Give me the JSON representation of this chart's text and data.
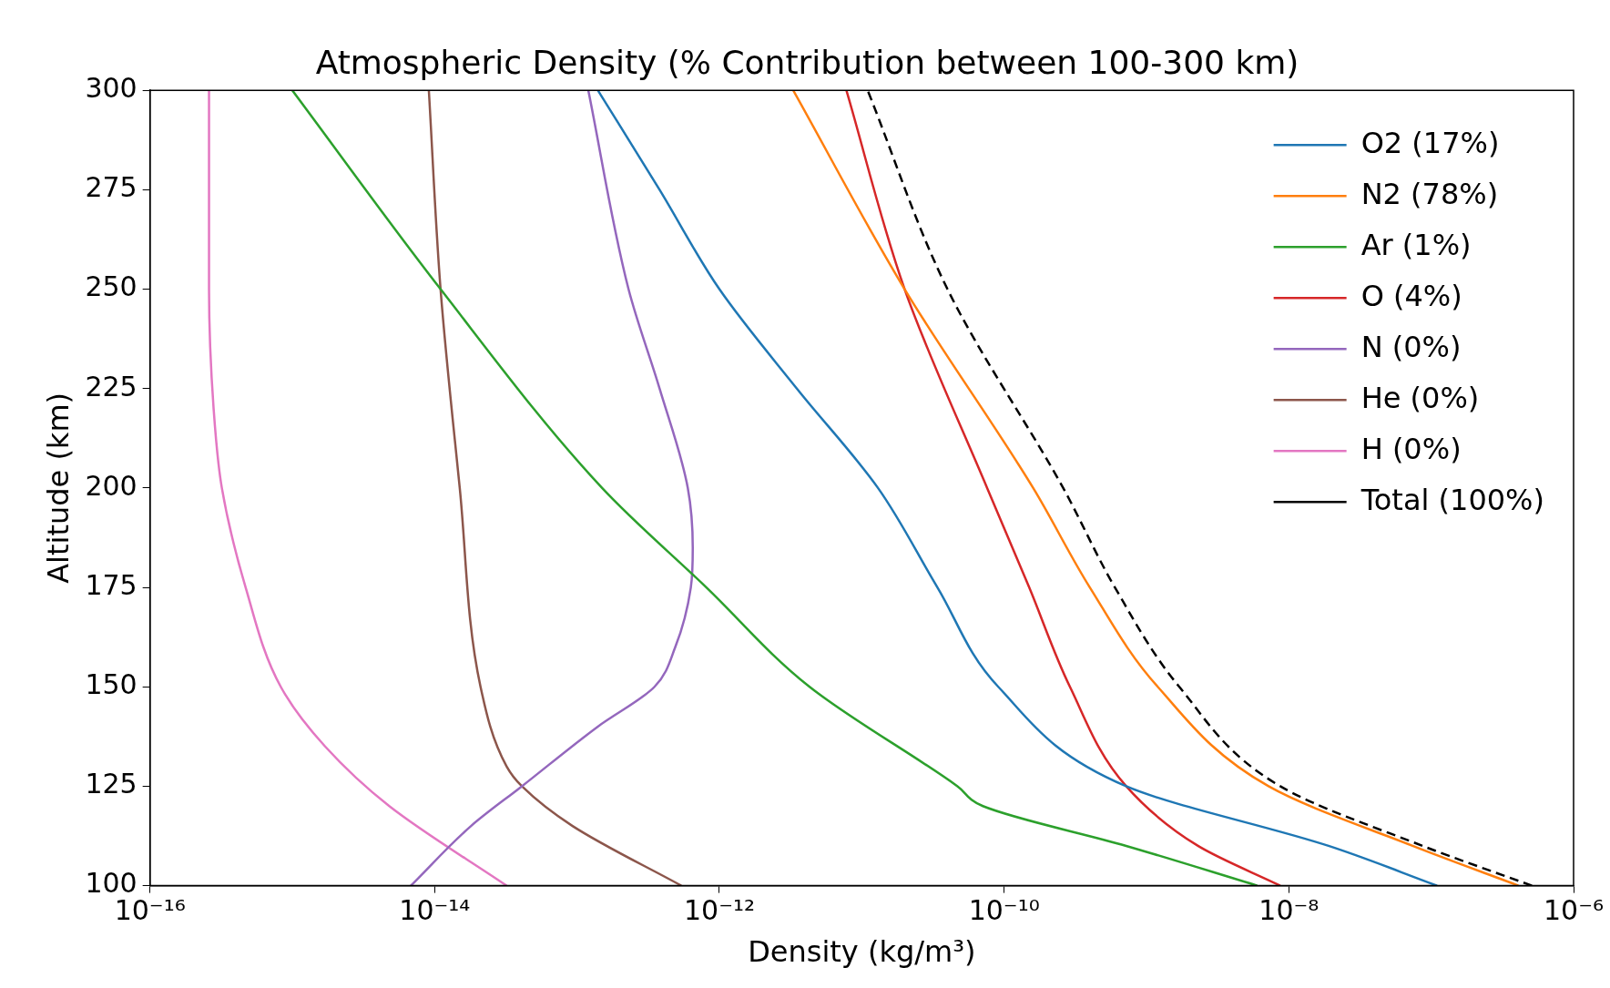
{
  "chart_data": {
    "type": "line",
    "title": "Atmospheric Density (% Contribution between 100-300 km)",
    "xlabel": "Density (kg/m³)",
    "ylabel": "Altitude (km)",
    "log": "x",
    "grid": false,
    "legend": "top right",
    "marker": "none",
    "xlim": [
      1e-16,
      1e-06
    ],
    "xticks": [
      {
        "value": 1e-16,
        "label": "10⁻¹⁶"
      },
      {
        "value": 1e-14,
        "label": "10⁻¹⁴"
      },
      {
        "value": 1e-12,
        "label": "10⁻¹²"
      },
      {
        "value": 1e-10,
        "label": "10⁻¹⁰"
      },
      {
        "value": 1e-08,
        "label": "10⁻⁸"
      },
      {
        "value": 1e-06,
        "label": "10⁻⁶"
      }
    ],
    "ylim": [
      100,
      300
    ],
    "yticks": [
      100,
      125,
      150,
      175,
      200,
      225,
      250,
      275,
      300
    ],
    "series": [
      {
        "name": "O2 (17%)",
        "color": "#1f77b4",
        "line_style": "solid",
        "x": [
          1.1e-07,
          1.9e-08,
          7.2e-10,
          9.1e-11,
          3.4e-11,
          1.3e-11,
          3.5e-12,
          1e-12,
          3.8e-13,
          1.4e-13
        ],
        "values": [
          100,
          110,
          125,
          150,
          175,
          200,
          225,
          250,
          275,
          300
        ]
      },
      {
        "name": "N2 (78%)",
        "color": "#ff7f0e",
        "line_style": "solid",
        "x": [
          4.1e-07,
          7.4e-08,
          7.2e-09,
          1.2e-09,
          4e-10,
          1.6e-10,
          2e-11,
          3.3e-12
        ],
        "values": [
          100,
          110,
          125,
          150,
          175,
          200,
          250,
          300
        ]
      },
      {
        "name": "Ar (1%)",
        "color": "#2ca02c",
        "line_style": "solid",
        "x": [
          6e-09,
          7.2e-10,
          7.1e-11,
          4.7e-11,
          4.3e-12,
          8.1e-13,
          1.5e-13,
          1.1e-14,
          1e-15
        ],
        "values": [
          100,
          110,
          120,
          125,
          150,
          175,
          200,
          250,
          300
        ]
      },
      {
        "name": "O (4%)",
        "color": "#d62728",
        "line_style": "solid",
        "x": [
          8.7e-09,
          2.3e-09,
          7.2e-10,
          2.9e-10,
          1.5e-10,
          7.6e-11,
          2e-11,
          7.8e-12
        ],
        "values": [
          100,
          110,
          125,
          150,
          175,
          200,
          250,
          300
        ]
      },
      {
        "name": "N (0%)",
        "color": "#9467bd",
        "line_style": "solid",
        "x": [
          6.8e-15,
          1.8e-14,
          4.1e-14,
          1.4e-13,
          3.5e-13,
          4.9e-13,
          6.3e-13,
          6.5e-13,
          6e-13,
          3.8e-13,
          2.3e-13,
          1.2e-13
        ],
        "values": [
          100,
          115,
          125,
          140,
          150,
          160,
          175,
          185,
          200,
          225,
          250,
          300
        ]
      },
      {
        "name": "He (0%)",
        "color": "#8c564b",
        "line_style": "solid",
        "x": [
          5.4e-13,
          9.3e-14,
          4.1e-14,
          3.2e-14,
          2.1e-14,
          1.5e-14,
          1.1e-14,
          9.1e-15
        ],
        "values": [
          100,
          115,
          125,
          130,
          150,
          200,
          250,
          300
        ]
      },
      {
        "name": "H (0%)",
        "color": "#e377c2",
        "line_style": "solid",
        "x": [
          3.2e-14,
          4.8e-15,
          1.7e-15,
          8.3e-16,
          4.7e-16,
          3.2e-16,
          2.8e-16,
          2.6e-16,
          2.6e-16
        ],
        "values": [
          100,
          120,
          135,
          150,
          175,
          200,
          220,
          250,
          300
        ]
      },
      {
        "name": "Total (100%)",
        "color": "#000000",
        "line_style": "dashed",
        "x": [
          5.1e-07,
          8.7e-08,
          8.7e-09,
          1.7e-09,
          6e-10,
          2.6e-10,
          4e-11,
          1.1e-11
        ],
        "values": [
          100,
          110,
          125,
          150,
          175,
          200,
          250,
          300
        ]
      }
    ]
  }
}
